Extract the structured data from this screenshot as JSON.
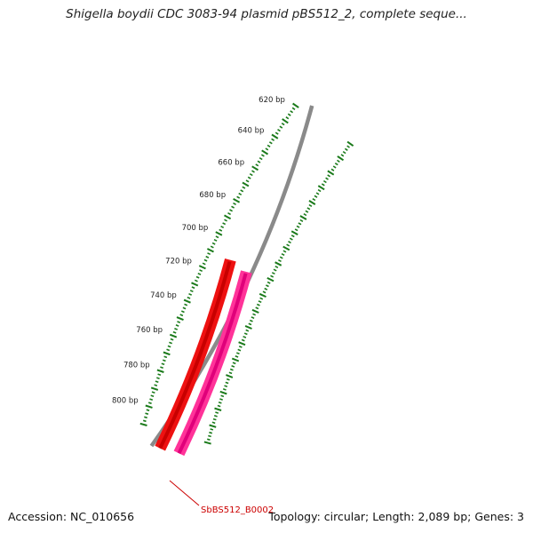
{
  "title": "Shigella boydii CDC 3083-94 plasmid pBS512_2, complete seque...",
  "footer": {
    "accession": "Accession: NC_010656",
    "summary": "Topology: circular; Length: 2,089 bp; Genes: 3"
  },
  "map": {
    "length_bp": 2089,
    "visible_range_bp": [
      620,
      810
    ],
    "tick_labels": [
      "620 bp",
      "640 bp",
      "660 bp",
      "680 bp",
      "700 bp",
      "720 bp",
      "740 bp",
      "760 bp",
      "780 bp",
      "800 bp"
    ],
    "genes": [
      {
        "label": "",
        "start_bp": 710,
        "strand": "forward",
        "color": "#ee1111"
      },
      {
        "label": "SbBS512_B0002",
        "start_bp": 712,
        "strand": "reverse",
        "color": "#ff3399"
      }
    ],
    "colors": {
      "backbone": "#8a8a8a",
      "ticks": "#1a7a1a",
      "label": "#cc0000"
    }
  }
}
